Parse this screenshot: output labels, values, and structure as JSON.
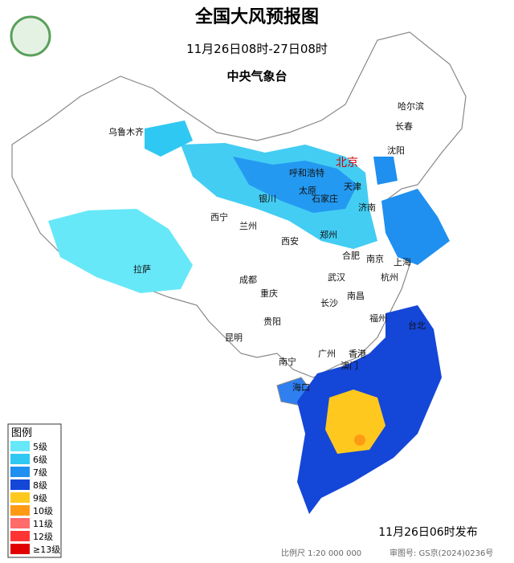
{
  "header": {
    "title": "全国大风预报图",
    "period": "11月26日08时-27日08时",
    "issuer": "中央气象台"
  },
  "cities": [
    "乌鲁木齐",
    "哈尔滨",
    "长春",
    "沈阳",
    "北京",
    "天津",
    "呼和浩特",
    "太原",
    "石家庄",
    "银川",
    "济南",
    "西宁",
    "兰州",
    "郑州",
    "西安",
    "合肥",
    "南京",
    "上海",
    "杭州",
    "成都",
    "武汉",
    "拉萨",
    "重庆",
    "长沙",
    "南昌",
    "贵阳",
    "福州",
    "台北",
    "昆明",
    "南宁",
    "广州",
    "香港",
    "澳门",
    "海口"
  ],
  "legend": {
    "title": "图例",
    "items": [
      {
        "label": "5级",
        "color": "#66e8f8"
      },
      {
        "label": "6级",
        "color": "#2fc8f2"
      },
      {
        "label": "7级",
        "color": "#1f8ff0"
      },
      {
        "label": "8级",
        "color": "#1446d8"
      },
      {
        "label": "9级",
        "color": "#ffc81e"
      },
      {
        "label": "10级",
        "color": "#ff9a14"
      },
      {
        "label": "11级",
        "color": "#ff6a6a"
      },
      {
        "label": "12级",
        "color": "#ff3434"
      },
      {
        "label": "≥13级",
        "color": "#e00000"
      }
    ]
  },
  "footer": {
    "published": "11月26日06时发布",
    "scale": "比例尺 1:20 000 000",
    "approval": "审图号: GS京(2024)0236号"
  }
}
